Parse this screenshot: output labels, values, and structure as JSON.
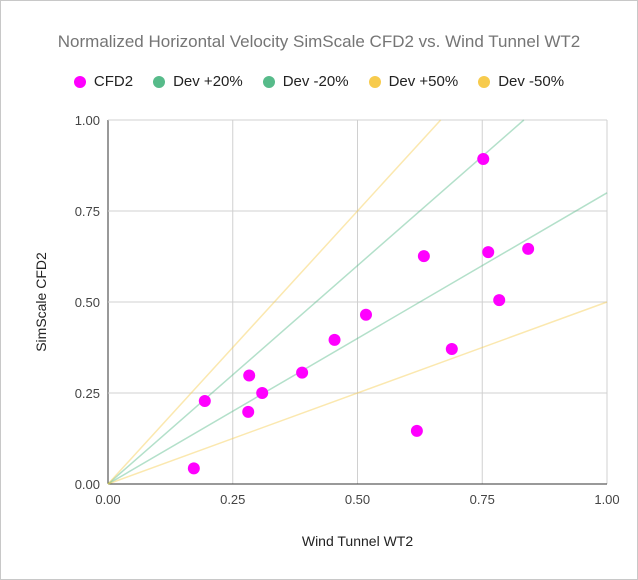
{
  "chart_data": {
    "type": "scatter",
    "title": "Normalized Horizontal Velocity SimScale CFD2 vs. Wind Tunnel WT2",
    "xlabel": "Wind Tunnel WT2",
    "ylabel": "SimScale CFD2",
    "xlim": [
      0,
      1
    ],
    "ylim": [
      0,
      1
    ],
    "xticks": [
      "0.00",
      "0.25",
      "0.50",
      "0.75",
      "1.00"
    ],
    "yticks": [
      "0.00",
      "0.25",
      "0.50",
      "0.75",
      "1.00"
    ],
    "grid": true,
    "legend_position": "top",
    "series": [
      {
        "name": "CFD2",
        "kind": "points",
        "color": "#ff00ff",
        "points": [
          [
            0.172,
            0.043
          ],
          [
            0.194,
            0.228
          ],
          [
            0.281,
            0.198
          ],
          [
            0.283,
            0.298
          ],
          [
            0.309,
            0.25
          ],
          [
            0.389,
            0.306
          ],
          [
            0.454,
            0.396
          ],
          [
            0.517,
            0.465
          ],
          [
            0.633,
            0.626
          ],
          [
            0.619,
            0.146
          ],
          [
            0.689,
            0.371
          ],
          [
            0.752,
            0.893
          ],
          [
            0.762,
            0.637
          ],
          [
            0.784,
            0.505
          ],
          [
            0.842,
            0.646
          ]
        ]
      },
      {
        "name": "Dev +20%",
        "kind": "line",
        "slope": 1.2,
        "color": "#57bb8a"
      },
      {
        "name": "Dev -20%",
        "kind": "line",
        "slope": 0.8,
        "color": "#57bb8a"
      },
      {
        "name": "Dev +50%",
        "kind": "line",
        "slope": 1.5,
        "color": "#f7cb4d"
      },
      {
        "name": "Dev -50%",
        "kind": "line",
        "slope": 0.5,
        "color": "#f7cb4d"
      }
    ]
  }
}
